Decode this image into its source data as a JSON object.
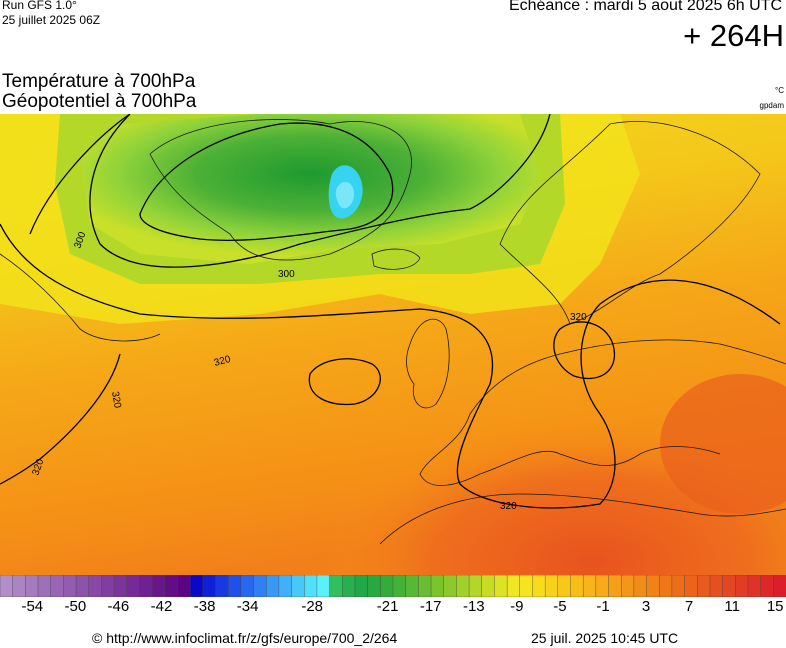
{
  "header": {
    "run": "Run GFS 1.0°",
    "run_date": "25 juillet 2025 06Z",
    "echeance": "Echéance : mardi 5 aout 2025 6h UTC",
    "lead_time": "+ 264H",
    "title_line1": "Température à 700hPa",
    "title_line2": "Géopotentiel à 700hPa",
    "unit_temp": "°C",
    "unit_geo": "gpdam"
  },
  "map": {
    "contour_labels": [
      "300",
      "300",
      "320",
      "320",
      "320",
      "320",
      "320"
    ],
    "temperature_colors": {
      "cold_ice": "#36d4f0",
      "green_dark": "#2ea83a",
      "green_light": "#8ed23a",
      "yellow": "#f2e21a",
      "orange": "#f59c16",
      "red": "#e8521e"
    }
  },
  "colorbar": {
    "min": -57,
    "max": 16,
    "ticks": [
      "-54",
      "-50",
      "-46",
      "-42",
      "-38",
      "-34",
      "-28",
      "-21",
      "-17",
      "-13",
      "-9",
      "-5",
      "-1",
      "3",
      "7",
      "11",
      "15"
    ],
    "colors": [
      "#b18ec9",
      "#ab84c4",
      "#a57abf",
      "#9f70ba",
      "#9966b5",
      "#935cb0",
      "#8d52ab",
      "#8748a6",
      "#813ea1",
      "#7b349c",
      "#752a97",
      "#6f2092",
      "#69168d",
      "#630c88",
      "#5d0283",
      "#0808c8",
      "#1020d8",
      "#1838e2",
      "#2050ea",
      "#2868f0",
      "#3080f4",
      "#3898f6",
      "#40b0f8",
      "#48c8fa",
      "#50e0fc",
      "#5cf0fa",
      "#30c060",
      "#28b050",
      "#22a848",
      "#28a840",
      "#34ac3c",
      "#44b238",
      "#56b834",
      "#68be30",
      "#7ac42e",
      "#8cca2c",
      "#a0d02a",
      "#b4d628",
      "#c8dc26",
      "#dce224",
      "#f0e622",
      "#f6e41e",
      "#f8dc1c",
      "#f8d21a",
      "#f8c818",
      "#f8be18",
      "#f8b418",
      "#f8aa18",
      "#f6a018",
      "#f49618",
      "#f28c18",
      "#f08218",
      "#ee7818",
      "#ec6e1a",
      "#ea641c",
      "#e85a1e",
      "#e65020",
      "#e44622",
      "#e23c24",
      "#e03226",
      "#de2828",
      "#dc1e2a"
    ]
  },
  "footer": {
    "copyright": "© http://www.infoclimat.fr/z/gfs/europe/700_2/264",
    "generated": "25 juil. 2025 10:45 UTC"
  }
}
